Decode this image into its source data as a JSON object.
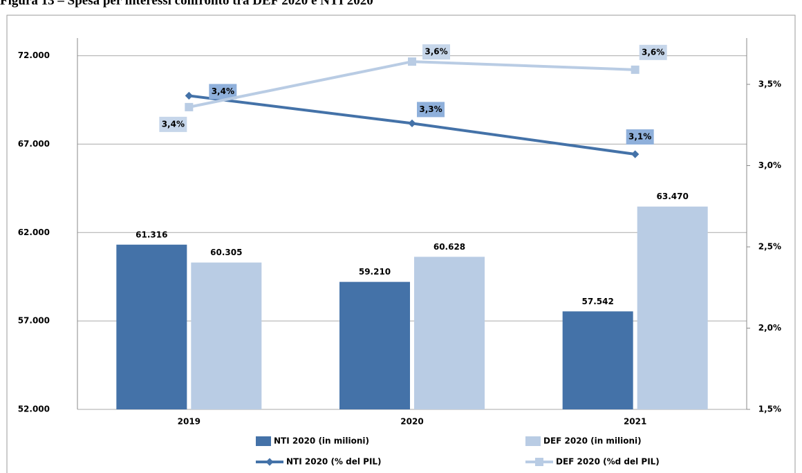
{
  "chart_data": {
    "type": "bar",
    "title": "Figura 13 – Spesa per interessi confronto tra DEF 2020 e NTI 2020",
    "categories": [
      "2019",
      "2020",
      "2021"
    ],
    "series": [
      {
        "name": "NTI 2020 (in milioni)",
        "type": "bar",
        "color": "#4472a8",
        "values": [
          61316,
          59210,
          57542
        ],
        "value_labels": [
          "61.316",
          "59.210",
          "57.542"
        ]
      },
      {
        "name": "DEF 2020 (in milioni)",
        "type": "bar",
        "color": "#b9cce4",
        "values": [
          60305,
          60628,
          63470
        ],
        "value_labels": [
          "60.305",
          "60.628",
          "63.470"
        ]
      },
      {
        "name": "NTI 2020 (% del PIL)",
        "type": "line",
        "axis": "y2",
        "color": "#4472a8",
        "values": [
          3.43,
          3.26,
          3.07
        ],
        "value_labels": [
          "3,4%",
          "3,3%",
          "3,1%"
        ]
      },
      {
        "name": "DEF 2020 (%d del PIL)",
        "type": "line",
        "axis": "y2",
        "color": "#b9cce4",
        "values": [
          3.36,
          3.64,
          3.59
        ],
        "value_labels": [
          "3,4%",
          "3,6%",
          "3,6%"
        ]
      }
    ],
    "ylim": [
      52000,
      73000
    ],
    "yticks": [
      {
        "value": 52000,
        "label": "52.000"
      },
      {
        "value": 57000,
        "label": "57.000"
      },
      {
        "value": 62000,
        "label": "62.000"
      },
      {
        "value": 67000,
        "label": "67.000"
      },
      {
        "value": 72000,
        "label": "72.000"
      }
    ],
    "y2lim": [
      1.5,
      3.785
    ],
    "y2ticks": [
      {
        "value": 1.5,
        "label": "1,5%"
      },
      {
        "value": 2.0,
        "label": "2,0%"
      },
      {
        "value": 2.5,
        "label": "2,5%"
      },
      {
        "value": 3.0,
        "label": "3,0%"
      },
      {
        "value": 3.5,
        "label": "3,5%"
      }
    ],
    "grid": true,
    "legend": "bottom"
  }
}
